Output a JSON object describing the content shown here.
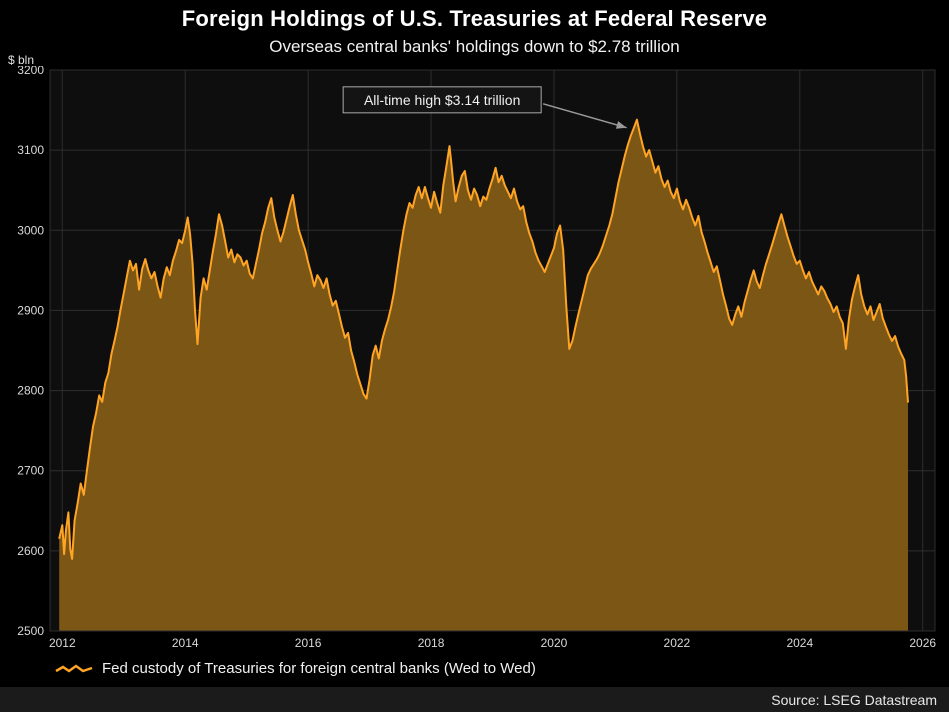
{
  "colors": {
    "background": "#000000",
    "plot_background": "#0e0e0e",
    "grid": "#2e2e2e",
    "tick_text": "#d9d9d9",
    "title_text": "#ffffff",
    "line": "#FFA424",
    "fill": "#7C5615",
    "annotation_bg": "#141414",
    "annotation_border": "#aaaaaa",
    "annotation_text": "#f0f0f0",
    "arrow": "#9a9a9a",
    "source_bar": "#1b1b1b"
  },
  "chart_data": {
    "type": "area",
    "title": "Foreign Holdings of U.S. Treasuries at Federal Reserve",
    "subtitle": "Overseas central banks' holdings down to $2.78 trillion",
    "ylabel": "$ bln",
    "xlabel": "",
    "ylim": [
      2500,
      3200
    ],
    "ytick_step": 100,
    "xlim": [
      2011.8,
      2026.2
    ],
    "xticks": [
      2012,
      2014,
      2016,
      2018,
      2020,
      2022,
      2024,
      2026
    ],
    "grid": true,
    "legend_position": "bottom-left",
    "legend": [
      "Fed custody of Treasuries for foreign central banks (Wed to Wed)"
    ],
    "source": "Source: LSEG Datastream",
    "annotation": {
      "text": "All-time high $3.14 trillion",
      "box_left_x": 2016.57,
      "box_top_y": 3179,
      "target_x": 2021.28,
      "target_y": 3128
    },
    "series": [
      {
        "name": "Fed custody of Treasuries for foreign central banks (Wed to Wed)",
        "color": "#FFA424",
        "fill": "#7C5615",
        "points": [
          [
            2011.95,
            2615
          ],
          [
            2012.0,
            2632
          ],
          [
            2012.03,
            2596
          ],
          [
            2012.06,
            2626
          ],
          [
            2012.1,
            2648
          ],
          [
            2012.13,
            2602
          ],
          [
            2012.16,
            2590
          ],
          [
            2012.2,
            2638
          ],
          [
            2012.25,
            2660
          ],
          [
            2012.3,
            2684
          ],
          [
            2012.35,
            2670
          ],
          [
            2012.4,
            2700
          ],
          [
            2012.45,
            2728
          ],
          [
            2012.5,
            2755
          ],
          [
            2012.55,
            2772
          ],
          [
            2012.6,
            2794
          ],
          [
            2012.65,
            2786
          ],
          [
            2012.7,
            2810
          ],
          [
            2012.75,
            2822
          ],
          [
            2012.8,
            2846
          ],
          [
            2012.85,
            2862
          ],
          [
            2012.9,
            2880
          ],
          [
            2012.95,
            2902
          ],
          [
            2013.0,
            2922
          ],
          [
            2013.05,
            2942
          ],
          [
            2013.1,
            2962
          ],
          [
            2013.15,
            2950
          ],
          [
            2013.2,
            2958
          ],
          [
            2013.25,
            2926
          ],
          [
            2013.3,
            2952
          ],
          [
            2013.35,
            2964
          ],
          [
            2013.4,
            2950
          ],
          [
            2013.45,
            2940
          ],
          [
            2013.5,
            2948
          ],
          [
            2013.55,
            2930
          ],
          [
            2013.6,
            2916
          ],
          [
            2013.65,
            2940
          ],
          [
            2013.7,
            2954
          ],
          [
            2013.75,
            2944
          ],
          [
            2013.8,
            2962
          ],
          [
            2013.85,
            2974
          ],
          [
            2013.9,
            2988
          ],
          [
            2013.95,
            2984
          ],
          [
            2014.0,
            3000
          ],
          [
            2014.04,
            3016
          ],
          [
            2014.08,
            2995
          ],
          [
            2014.12,
            2958
          ],
          [
            2014.16,
            2900
          ],
          [
            2014.2,
            2858
          ],
          [
            2014.25,
            2916
          ],
          [
            2014.3,
            2940
          ],
          [
            2014.35,
            2926
          ],
          [
            2014.4,
            2950
          ],
          [
            2014.45,
            2974
          ],
          [
            2014.5,
            2995
          ],
          [
            2014.55,
            3020
          ],
          [
            2014.6,
            3006
          ],
          [
            2014.65,
            2986
          ],
          [
            2014.7,
            2966
          ],
          [
            2014.75,
            2976
          ],
          [
            2014.8,
            2960
          ],
          [
            2014.85,
            2970
          ],
          [
            2014.9,
            2966
          ],
          [
            2014.95,
            2956
          ],
          [
            2015.0,
            2962
          ],
          [
            2015.05,
            2946
          ],
          [
            2015.1,
            2940
          ],
          [
            2015.15,
            2958
          ],
          [
            2015.2,
            2976
          ],
          [
            2015.25,
            2996
          ],
          [
            2015.3,
            3010
          ],
          [
            2015.35,
            3028
          ],
          [
            2015.4,
            3040
          ],
          [
            2015.45,
            3016
          ],
          [
            2015.5,
            3000
          ],
          [
            2015.55,
            2986
          ],
          [
            2015.6,
            2998
          ],
          [
            2015.65,
            3014
          ],
          [
            2015.7,
            3030
          ],
          [
            2015.75,
            3044
          ],
          [
            2015.8,
            3020
          ],
          [
            2015.85,
            3000
          ],
          [
            2015.9,
            2988
          ],
          [
            2015.95,
            2976
          ],
          [
            2016.0,
            2960
          ],
          [
            2016.05,
            2946
          ],
          [
            2016.1,
            2930
          ],
          [
            2016.15,
            2944
          ],
          [
            2016.2,
            2938
          ],
          [
            2016.25,
            2928
          ],
          [
            2016.3,
            2940
          ],
          [
            2016.35,
            2920
          ],
          [
            2016.4,
            2906
          ],
          [
            2016.45,
            2912
          ],
          [
            2016.5,
            2896
          ],
          [
            2016.55,
            2880
          ],
          [
            2016.6,
            2866
          ],
          [
            2016.65,
            2872
          ],
          [
            2016.7,
            2850
          ],
          [
            2016.75,
            2836
          ],
          [
            2016.8,
            2820
          ],
          [
            2016.85,
            2808
          ],
          [
            2016.9,
            2796
          ],
          [
            2016.95,
            2790
          ],
          [
            2017.0,
            2814
          ],
          [
            2017.05,
            2844
          ],
          [
            2017.1,
            2856
          ],
          [
            2017.15,
            2840
          ],
          [
            2017.2,
            2862
          ],
          [
            2017.25,
            2876
          ],
          [
            2017.3,
            2888
          ],
          [
            2017.35,
            2904
          ],
          [
            2017.4,
            2924
          ],
          [
            2017.45,
            2950
          ],
          [
            2017.5,
            2976
          ],
          [
            2017.55,
            3000
          ],
          [
            2017.6,
            3020
          ],
          [
            2017.65,
            3034
          ],
          [
            2017.7,
            3028
          ],
          [
            2017.75,
            3044
          ],
          [
            2017.8,
            3054
          ],
          [
            2017.85,
            3040
          ],
          [
            2017.9,
            3054
          ],
          [
            2017.95,
            3040
          ],
          [
            2018.0,
            3028
          ],
          [
            2018.05,
            3048
          ],
          [
            2018.1,
            3034
          ],
          [
            2018.15,
            3022
          ],
          [
            2018.2,
            3056
          ],
          [
            2018.25,
            3080
          ],
          [
            2018.3,
            3105
          ],
          [
            2018.33,
            3084
          ],
          [
            2018.36,
            3060
          ],
          [
            2018.4,
            3036
          ],
          [
            2018.45,
            3054
          ],
          [
            2018.5,
            3068
          ],
          [
            2018.55,
            3074
          ],
          [
            2018.6,
            3050
          ],
          [
            2018.65,
            3038
          ],
          [
            2018.7,
            3052
          ],
          [
            2018.75,
            3044
          ],
          [
            2018.8,
            3030
          ],
          [
            2018.85,
            3042
          ],
          [
            2018.9,
            3038
          ],
          [
            2018.95,
            3052
          ],
          [
            2019.0,
            3064
          ],
          [
            2019.05,
            3078
          ],
          [
            2019.1,
            3060
          ],
          [
            2019.15,
            3068
          ],
          [
            2019.2,
            3056
          ],
          [
            2019.25,
            3048
          ],
          [
            2019.3,
            3040
          ],
          [
            2019.35,
            3052
          ],
          [
            2019.4,
            3036
          ],
          [
            2019.45,
            3026
          ],
          [
            2019.5,
            3030
          ],
          [
            2019.55,
            3010
          ],
          [
            2019.6,
            2996
          ],
          [
            2019.65,
            2986
          ],
          [
            2019.7,
            2972
          ],
          [
            2019.75,
            2962
          ],
          [
            2019.8,
            2955
          ],
          [
            2019.85,
            2948
          ],
          [
            2019.9,
            2958
          ],
          [
            2019.95,
            2968
          ],
          [
            2020.0,
            2978
          ],
          [
            2020.05,
            2996
          ],
          [
            2020.1,
            3006
          ],
          [
            2020.15,
            2975
          ],
          [
            2020.2,
            2905
          ],
          [
            2020.25,
            2852
          ],
          [
            2020.3,
            2862
          ],
          [
            2020.35,
            2880
          ],
          [
            2020.4,
            2896
          ],
          [
            2020.45,
            2912
          ],
          [
            2020.5,
            2928
          ],
          [
            2020.55,
            2944
          ],
          [
            2020.6,
            2952
          ],
          [
            2020.65,
            2958
          ],
          [
            2020.7,
            2964
          ],
          [
            2020.75,
            2972
          ],
          [
            2020.8,
            2982
          ],
          [
            2020.85,
            2994
          ],
          [
            2020.9,
            3006
          ],
          [
            2020.95,
            3020
          ],
          [
            2021.0,
            3040
          ],
          [
            2021.05,
            3060
          ],
          [
            2021.1,
            3076
          ],
          [
            2021.15,
            3092
          ],
          [
            2021.2,
            3106
          ],
          [
            2021.25,
            3118
          ],
          [
            2021.3,
            3128
          ],
          [
            2021.35,
            3138
          ],
          [
            2021.4,
            3120
          ],
          [
            2021.45,
            3104
          ],
          [
            2021.5,
            3092
          ],
          [
            2021.55,
            3100
          ],
          [
            2021.6,
            3086
          ],
          [
            2021.65,
            3072
          ],
          [
            2021.7,
            3080
          ],
          [
            2021.75,
            3064
          ],
          [
            2021.8,
            3054
          ],
          [
            2021.85,
            3062
          ],
          [
            2021.9,
            3048
          ],
          [
            2021.95,
            3040
          ],
          [
            2022.0,
            3052
          ],
          [
            2022.05,
            3036
          ],
          [
            2022.1,
            3026
          ],
          [
            2022.15,
            3038
          ],
          [
            2022.2,
            3028
          ],
          [
            2022.25,
            3016
          ],
          [
            2022.3,
            3006
          ],
          [
            2022.35,
            3018
          ],
          [
            2022.4,
            2998
          ],
          [
            2022.45,
            2986
          ],
          [
            2022.5,
            2972
          ],
          [
            2022.55,
            2960
          ],
          [
            2022.6,
            2948
          ],
          [
            2022.65,
            2955
          ],
          [
            2022.7,
            2938
          ],
          [
            2022.75,
            2920
          ],
          [
            2022.8,
            2906
          ],
          [
            2022.85,
            2890
          ],
          [
            2022.9,
            2882
          ],
          [
            2022.95,
            2895
          ],
          [
            2023.0,
            2905
          ],
          [
            2023.05,
            2892
          ],
          [
            2023.1,
            2910
          ],
          [
            2023.15,
            2924
          ],
          [
            2023.2,
            2938
          ],
          [
            2023.25,
            2950
          ],
          [
            2023.3,
            2936
          ],
          [
            2023.35,
            2928
          ],
          [
            2023.4,
            2944
          ],
          [
            2023.45,
            2958
          ],
          [
            2023.5,
            2970
          ],
          [
            2023.55,
            2982
          ],
          [
            2023.6,
            2995
          ],
          [
            2023.65,
            3008
          ],
          [
            2023.7,
            3020
          ],
          [
            2023.75,
            3006
          ],
          [
            2023.8,
            2992
          ],
          [
            2023.85,
            2980
          ],
          [
            2023.9,
            2968
          ],
          [
            2023.95,
            2958
          ],
          [
            2024.0,
            2962
          ],
          [
            2024.05,
            2950
          ],
          [
            2024.1,
            2940
          ],
          [
            2024.15,
            2948
          ],
          [
            2024.2,
            2936
          ],
          [
            2024.25,
            2928
          ],
          [
            2024.3,
            2920
          ],
          [
            2024.35,
            2930
          ],
          [
            2024.4,
            2924
          ],
          [
            2024.45,
            2915
          ],
          [
            2024.5,
            2908
          ],
          [
            2024.55,
            2898
          ],
          [
            2024.6,
            2905
          ],
          [
            2024.65,
            2892
          ],
          [
            2024.7,
            2884
          ],
          [
            2024.75,
            2852
          ],
          [
            2024.8,
            2890
          ],
          [
            2024.85,
            2914
          ],
          [
            2024.9,
            2930
          ],
          [
            2024.95,
            2944
          ],
          [
            2025.0,
            2920
          ],
          [
            2025.05,
            2905
          ],
          [
            2025.1,
            2895
          ],
          [
            2025.15,
            2905
          ],
          [
            2025.2,
            2888
          ],
          [
            2025.25,
            2898
          ],
          [
            2025.3,
            2908
          ],
          [
            2025.35,
            2890
          ],
          [
            2025.4,
            2880
          ],
          [
            2025.45,
            2870
          ],
          [
            2025.5,
            2862
          ],
          [
            2025.55,
            2868
          ],
          [
            2025.6,
            2855
          ],
          [
            2025.65,
            2846
          ],
          [
            2025.7,
            2838
          ],
          [
            2025.73,
            2818
          ],
          [
            2025.76,
            2785
          ]
        ]
      }
    ]
  }
}
